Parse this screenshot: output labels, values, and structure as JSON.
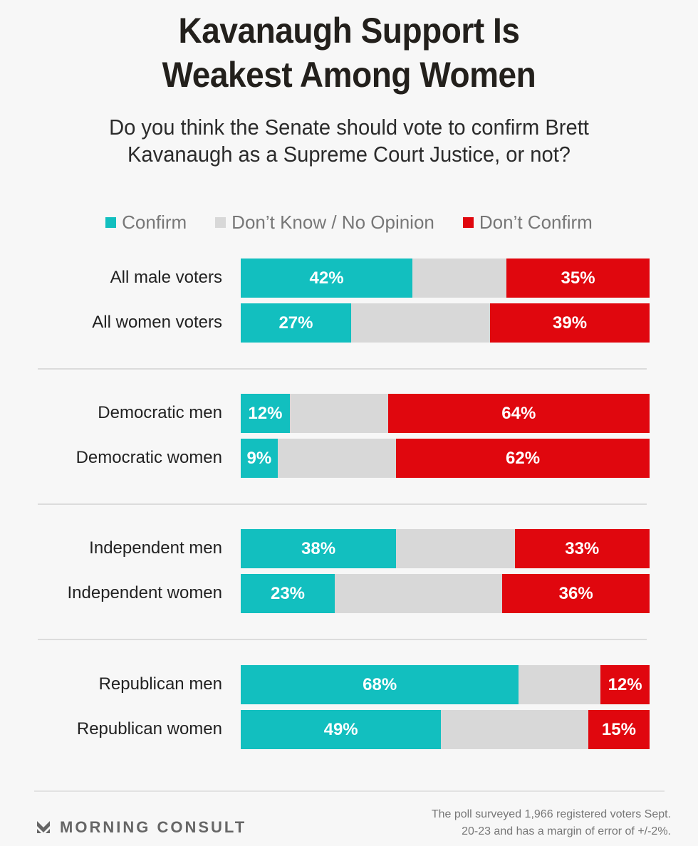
{
  "chart_data": {
    "type": "bar",
    "orientation": "horizontal-stacked-100",
    "title": "Kavanaugh Support Is Weakest Among Women",
    "subtitle": "Do you think the Senate should vote to confirm Brett Kavanaugh as a Supreme Court Justice, or not?",
    "legend": [
      {
        "name": "Confirm",
        "color": "#12bfbf"
      },
      {
        "name": "Don’t Know / No Opinion",
        "color": "#d8d8d8"
      },
      {
        "name": "Don’t Confirm",
        "color": "#e0070e"
      }
    ],
    "legend_position": "top",
    "unit": "%",
    "groups": [
      {
        "rows": [
          {
            "label": "All male voters",
            "confirm": 42,
            "dont_know": 23,
            "dont_confirm": 35
          },
          {
            "label": "All women voters",
            "confirm": 27,
            "dont_know": 34,
            "dont_confirm": 39
          }
        ]
      },
      {
        "rows": [
          {
            "label": "Democratic men",
            "confirm": 12,
            "dont_know": 24,
            "dont_confirm": 64
          },
          {
            "label": "Democratic women",
            "confirm": 9,
            "dont_know": 29,
            "dont_confirm": 62
          }
        ]
      },
      {
        "rows": [
          {
            "label": "Independent men",
            "confirm": 38,
            "dont_know": 29,
            "dont_confirm": 33
          },
          {
            "label": "Independent women",
            "confirm": 23,
            "dont_know": 41,
            "dont_confirm": 36
          }
        ]
      },
      {
        "rows": [
          {
            "label": "Republican men",
            "confirm": 68,
            "dont_know": 20,
            "dont_confirm": 12
          },
          {
            "label": "Republican women",
            "confirm": 49,
            "dont_know": 36,
            "dont_confirm": 15
          }
        ]
      }
    ]
  },
  "header": {
    "title_line1": "Kavanaugh Support Is",
    "title_line2": "Weakest Among Women",
    "subtitle_line1": "Do you think the Senate should vote to confirm Brett",
    "subtitle_line2": "Kavanaugh as a Supreme Court Justice, or not?"
  },
  "footer": {
    "brand": "MORNING CONSULT",
    "brand_icon": "morning-consult-logo-icon",
    "note_line1": "The poll surveyed 1,966 registered voters Sept.",
    "note_line2": "20-23 and has a margin of error of +/-2%."
  }
}
